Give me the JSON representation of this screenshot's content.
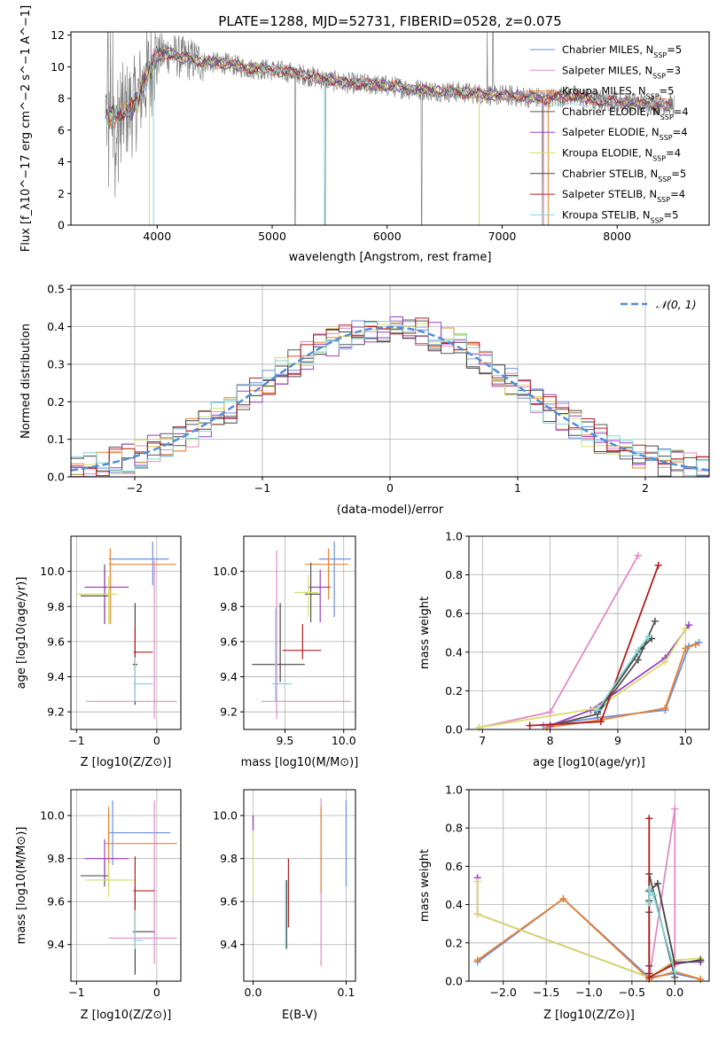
{
  "figure": {
    "title": "PLATE=1288, MJD=52731, FIBERID=0528, z=0.075"
  },
  "colors": {
    "Chabrier MILES": "#6b8fe0",
    "Salpeter MILES": "#e38bc4",
    "Kroupa MILES": "#e8822e",
    "Chabrier ELODIE": "#555555",
    "Salpeter ELODIE": "#9a3fbf",
    "Kroupa ELODIE": "#d7dc6a",
    "Chabrier STELIB": "#444444",
    "Salpeter STELIB": "#b51c1c",
    "Kroupa STELIB": "#7fd6d6",
    "data": "#808080",
    "gaussian": "#4f8fd8"
  },
  "chart_data": [
    {
      "type": "line",
      "id": "spectrum",
      "xlabel": "wavelength [Angstrom, rest frame]",
      "ylabel": "Flux [f_λ10^−17 erg cm^−2 s^−1 A^−1]",
      "xlim": [
        3250,
        8800
      ],
      "ylim": [
        0,
        12.2
      ],
      "xticks": [
        4000,
        5000,
        6000,
        7000,
        8000
      ],
      "yticks": [
        0,
        2,
        4,
        6,
        8,
        10,
        12
      ],
      "grid": false,
      "legend_position": "top-right",
      "legend": [
        "Chabrier MILES, N_SSP=5",
        "Salpeter MILES, N_SSP=3",
        "Kroupa MILES, N_SSP=5",
        "Chabrier ELODIE, N_SSP=4",
        "Salpeter ELODIE, N_SSP=4",
        "Kroupa ELODIE, N_SSP=4",
        "Chabrier STELIB, N_SSP=5",
        "Salpeter STELIB, N_SSP=4",
        "Kroupa STELIB, N_SSP=5"
      ],
      "continuum": {
        "x": [
          3550,
          3600,
          3700,
          3800,
          3900,
          4000,
          4100,
          4200,
          4400,
          4600,
          4800,
          5000,
          5200,
          5400,
          5600,
          5800,
          6000,
          6200,
          6400,
          6600,
          6800,
          7000,
          7200,
          7400,
          7600,
          7800,
          8000,
          8200,
          8400,
          8500
        ],
        "y": [
          7.2,
          6.8,
          7.1,
          7.5,
          9.2,
          10.7,
          10.9,
          10.6,
          10.3,
          10.2,
          9.9,
          9.8,
          9.6,
          9.3,
          9.0,
          8.9,
          8.8,
          8.6,
          8.5,
          8.4,
          8.3,
          8.2,
          8.1,
          8.0,
          8.2,
          7.9,
          7.8,
          7.7,
          7.6,
          7.6
        ]
      }
    },
    {
      "type": "bar",
      "id": "residual-histogram",
      "xlabel": "(data-model)/error",
      "ylabel": "Normed distribution",
      "xlim": [
        -2.5,
        2.5
      ],
      "ylim": [
        0,
        0.51
      ],
      "xticks": [
        -2,
        -1,
        0,
        1,
        2
      ],
      "yticks": [
        0.0,
        0.1,
        0.2,
        0.3,
        0.4,
        0.5
      ],
      "grid": true,
      "legend_position": "top-right",
      "legend": [
        "N(0,1)"
      ],
      "bin_width": 0.1
    },
    {
      "type": "scatter",
      "id": "age-vs-z",
      "xlabel": "Z [log10(Z/Z⊙)]",
      "ylabel": "age  [log10(age/yr)]",
      "xlim": [
        -1.07,
        0.3
      ],
      "ylim": [
        9.1,
        10.2
      ],
      "xticks": [
        -1,
        0
      ],
      "yticks": [
        9.2,
        9.4,
        9.6,
        9.8,
        10.0
      ],
      "grid": true,
      "points": [
        {
          "model": "Chabrier MILES",
          "x": -0.05,
          "y": 10.07,
          "xerr": [
            0.55,
            0.2
          ],
          "yerr": [
            0.15,
            0.1
          ]
        },
        {
          "model": "Kroupa MILES",
          "x": -0.58,
          "y": 10.04,
          "xerr": [
            0.02,
            0.82
          ],
          "yerr": [
            0.34,
            0.09
          ]
        },
        {
          "model": "Chabrier ELODIE",
          "x": -0.65,
          "y": 9.86,
          "xerr": [
            0.3,
            0.05
          ],
          "yerr": [
            0.16,
            0.18
          ]
        },
        {
          "model": "Salpeter ELODIE",
          "x": -0.65,
          "y": 9.91,
          "xerr": [
            0.25,
            0.3
          ],
          "yerr": [
            0.21,
            0.1
          ]
        },
        {
          "model": "Kroupa ELODIE",
          "x": -0.6,
          "y": 9.87,
          "xerr": [
            0.4,
            0.1
          ],
          "yerr": [
            0.17,
            0.1
          ]
        },
        {
          "model": "Chabrier STELIB",
          "x": -0.27,
          "y": 9.47,
          "xerr": [
            0.03,
            0.03
          ],
          "yerr": [
            0.23,
            0.35
          ]
        },
        {
          "model": "Salpeter STELIB",
          "x": -0.27,
          "y": 9.54,
          "xerr": [
            0.02,
            0.22
          ],
          "yerr": [
            0.1,
            0.15
          ]
        },
        {
          "model": "Kroupa STELIB",
          "x": -0.27,
          "y": 9.36,
          "xerr": [
            0.02,
            0.22
          ],
          "yerr": [
            0.1,
            0.15
          ]
        },
        {
          "model": "Salpeter MILES",
          "x": -0.03,
          "y": 9.26,
          "xerr": [
            0.85,
            0.28
          ],
          "yerr": [
            0.1,
            0.8
          ]
        }
      ]
    },
    {
      "type": "scatter",
      "id": "age-vs-mass",
      "xlabel": "mass [log10(M/M⊙)]",
      "ylabel": "",
      "xlim": [
        9.15,
        10.1
      ],
      "ylim": [
        9.1,
        10.2
      ],
      "xticks": [
        9.5,
        10.0
      ],
      "yticks": [
        9.2,
        9.4,
        9.6,
        9.8,
        10.0
      ],
      "grid": true,
      "points": [
        {
          "model": "Chabrier MILES",
          "x": 9.92,
          "y": 10.07,
          "xerr": [
            0.13,
            0.14
          ],
          "yerr": [
            0.33,
            0.1
          ]
        },
        {
          "model": "Kroupa MILES",
          "x": 9.87,
          "y": 10.04,
          "xerr": [
            0.2,
            0.17
          ],
          "yerr": [
            0.2,
            0.09
          ]
        },
        {
          "model": "Chabrier ELODIE",
          "x": 9.72,
          "y": 9.87,
          "xerr": [
            0.05,
            0.08
          ],
          "yerr": [
            0.16,
            0.18
          ]
        },
        {
          "model": "Salpeter ELODIE",
          "x": 9.8,
          "y": 9.91,
          "xerr": [
            0.1,
            0.09
          ],
          "yerr": [
            0.2,
            0.1
          ]
        },
        {
          "model": "Kroupa ELODIE",
          "x": 9.7,
          "y": 9.88,
          "xerr": [
            0.12,
            0.08
          ],
          "yerr": [
            0.14,
            0.1
          ]
        },
        {
          "model": "Chabrier STELIB",
          "x": 9.46,
          "y": 9.47,
          "xerr": [
            0.24,
            0.21
          ],
          "yerr": [
            0.1,
            0.35
          ]
        },
        {
          "model": "Salpeter STELIB",
          "x": 9.65,
          "y": 9.55,
          "xerr": [
            0.17,
            0.16
          ],
          "yerr": [
            0.05,
            0.15
          ]
        },
        {
          "model": "Kroupa STELIB",
          "x": 9.42,
          "y": 9.36,
          "xerr": [
            0.03,
            0.14
          ],
          "yerr": [
            0.1,
            0.43
          ]
        },
        {
          "model": "Salpeter MILES",
          "x": 9.43,
          "y": 9.26,
          "xerr": [
            0.13,
            0.63
          ],
          "yerr": [
            0.1,
            0.86
          ]
        }
      ]
    },
    {
      "type": "line",
      "id": "mass-weight-vs-age",
      "xlabel": "age  [log10(age/yr)]",
      "ylabel": "mass weight",
      "xlim": [
        6.8,
        10.35
      ],
      "ylim": [
        0,
        1.0
      ],
      "xticks": [
        7,
        8,
        9,
        10
      ],
      "yticks": [
        0.0,
        0.2,
        0.4,
        0.6,
        0.8,
        1.0
      ],
      "grid": true,
      "series": [
        {
          "name": "Chabrier MILES",
          "x": [
            7.9,
            8.7,
            9.7,
            10.05,
            10.2
          ],
          "y": [
            0.02,
            0.06,
            0.1,
            0.43,
            0.45
          ]
        },
        {
          "name": "Salpeter MILES",
          "x": [
            6.95,
            8.0,
            9.3
          ],
          "y": [
            0.01,
            0.09,
            0.9
          ]
        },
        {
          "name": "Kroupa MILES",
          "x": [
            7.95,
            8.75,
            9.7,
            10.0,
            10.15
          ],
          "y": [
            0.01,
            0.05,
            0.11,
            0.42,
            0.44
          ]
        },
        {
          "name": "Chabrier ELODIE",
          "x": [
            8.0,
            8.7,
            9.3,
            9.55
          ],
          "y": [
            0.02,
            0.08,
            0.36,
            0.56
          ]
        },
        {
          "name": "Salpeter ELODIE",
          "x": [
            8.0,
            8.6,
            9.7,
            10.05
          ],
          "y": [
            0.02,
            0.1,
            0.37,
            0.54
          ]
        },
        {
          "name": "Kroupa ELODIE",
          "x": [
            6.95,
            8.7,
            9.7,
            10.0
          ],
          "y": [
            0.01,
            0.11,
            0.35,
            0.52
          ]
        },
        {
          "name": "Chabrier STELIB",
          "x": [
            8.7,
            9.35,
            9.5
          ],
          "y": [
            0.09,
            0.42,
            0.47
          ]
        },
        {
          "name": "Salpeter STELIB",
          "x": [
            7.7,
            8.75,
            9.6
          ],
          "y": [
            0.02,
            0.04,
            0.85
          ]
        },
        {
          "name": "Kroupa STELIB",
          "x": [
            8.7,
            9.3,
            9.45
          ],
          "y": [
            0.1,
            0.41,
            0.48
          ]
        }
      ]
    },
    {
      "type": "scatter",
      "id": "mass-vs-z",
      "xlabel": "Z [log10(Z/Z⊙)]",
      "ylabel": "mass [log10(M/M⊙)]",
      "xlim": [
        -1.07,
        0.3
      ],
      "ylim": [
        9.23,
        10.12
      ],
      "xticks": [
        -1,
        0
      ],
      "yticks": [
        9.4,
        9.6,
        9.8,
        10.0
      ],
      "grid": true,
      "points": [
        {
          "model": "Chabrier MILES",
          "x": -0.55,
          "y": 9.92,
          "xerr": [
            0.05,
            0.72
          ],
          "yerr": [
            0.15,
            0.15
          ]
        },
        {
          "model": "Kroupa MILES",
          "x": -0.6,
          "y": 9.87,
          "xerr": [
            0.05,
            0.85
          ],
          "yerr": [
            0.2,
            0.17
          ]
        },
        {
          "model": "Chabrier ELODIE",
          "x": -0.65,
          "y": 9.72,
          "xerr": [
            0.3,
            0.05
          ],
          "yerr": [
            0.05,
            0.08
          ]
        },
        {
          "model": "Salpeter ELODIE",
          "x": -0.65,
          "y": 9.8,
          "xerr": [
            0.25,
            0.3
          ],
          "yerr": [
            0.1,
            0.09
          ]
        },
        {
          "model": "Kroupa ELODIE",
          "x": -0.6,
          "y": 9.7,
          "xerr": [
            0.3,
            0.32
          ],
          "yerr": [
            0.08,
            0.08
          ]
        },
        {
          "model": "Chabrier STELIB",
          "x": -0.27,
          "y": 9.46,
          "xerr": [
            0.03,
            0.25
          ],
          "yerr": [
            0.2,
            0.21
          ]
        },
        {
          "model": "Salpeter STELIB",
          "x": -0.27,
          "y": 9.65,
          "xerr": [
            0.02,
            0.25
          ],
          "yerr": [
            0.17,
            0.16
          ]
        },
        {
          "model": "Kroupa STELIB",
          "x": -0.27,
          "y": 9.42,
          "xerr": [
            0.02,
            0.1
          ],
          "yerr": [
            0.04,
            0.14
          ]
        },
        {
          "model": "Salpeter MILES",
          "x": -0.03,
          "y": 9.43,
          "xerr": [
            0.57,
            0.28
          ],
          "yerr": [
            0.12,
            0.64
          ]
        }
      ]
    },
    {
      "type": "scatter",
      "id": "mass-vs-ebv",
      "xlabel": "E(B-V)",
      "ylabel": "",
      "xlim": [
        -0.01,
        0.11
      ],
      "ylim": [
        9.23,
        10.12
      ],
      "xticks": [
        0.0,
        0.1
      ],
      "yticks": [
        9.4,
        9.6,
        9.8,
        10.0
      ],
      "grid": true,
      "points": [
        {
          "model": "Chabrier MILES",
          "x": 0.1,
          "y": 9.92,
          "xerr": [
            0,
            0
          ],
          "yerr": [
            0.25,
            0.15
          ]
        },
        {
          "model": "Salpeter MILES",
          "x": 0.073,
          "y": 9.7,
          "xerr": [
            0,
            0
          ],
          "yerr": [
            0.4,
            0.38
          ]
        },
        {
          "model": "Kroupa MILES",
          "x": 0.073,
          "y": 9.87,
          "xerr": [
            0,
            0
          ],
          "yerr": [
            0.23,
            0.17
          ]
        },
        {
          "model": "Chabrier ELODIE",
          "x": 0.0,
          "y": 9.97,
          "xerr": [
            0,
            0
          ],
          "yerr": [
            0.03,
            0.03
          ]
        },
        {
          "model": "Salpeter ELODIE",
          "x": 0.0,
          "y": 9.96,
          "xerr": [
            0,
            0
          ],
          "yerr": [
            0.03,
            0.04
          ]
        },
        {
          "model": "Kroupa ELODIE",
          "x": 0.0,
          "y": 9.77,
          "xerr": [
            0,
            0
          ],
          "yerr": [
            0.15,
            0.15
          ]
        },
        {
          "model": "Chabrier STELIB",
          "x": 0.036,
          "y": 9.46,
          "xerr": [
            0,
            0
          ],
          "yerr": [
            0.08,
            0.24
          ]
        },
        {
          "model": "Salpeter STELIB",
          "x": 0.038,
          "y": 9.65,
          "xerr": [
            0,
            0
          ],
          "yerr": [
            0.17,
            0.15
          ]
        },
        {
          "model": "Kroupa STELIB",
          "x": 0.035,
          "y": 9.55,
          "xerr": [
            0,
            0
          ],
          "yerr": [
            0.17,
            0.15
          ]
        }
      ]
    },
    {
      "type": "line",
      "id": "mass-weight-vs-z",
      "xlabel": "Z [log10(Z/Z⊙)]",
      "ylabel": "mass weight",
      "xlim": [
        -2.4,
        0.4
      ],
      "ylim": [
        0,
        1.0
      ],
      "xticks": [
        -2.0,
        -1.5,
        -1.0,
        -0.5,
        0.0
      ],
      "yticks": [
        0.0,
        0.2,
        0.4,
        0.6,
        0.8,
        1.0
      ],
      "grid": true,
      "series": [
        {
          "name": "Chabrier MILES",
          "x": [
            -2.3,
            -1.3,
            -0.3,
            0.0,
            0.3
          ],
          "y": [
            0.1,
            0.43,
            0.02,
            0.04,
            0.01
          ]
        },
        {
          "name": "Salpeter MILES",
          "x": [
            -0.3,
            0.0,
            0.0
          ],
          "y": [
            0.01,
            0.9,
            0.09
          ]
        },
        {
          "name": "Kroupa MILES",
          "x": [
            -2.3,
            -1.3,
            -0.3,
            0.0,
            0.3
          ],
          "y": [
            0.11,
            0.43,
            0.01,
            0.05,
            0.01
          ]
        },
        {
          "name": "Chabrier ELODIE",
          "x": [
            -0.3,
            -0.3,
            -0.3,
            0.0
          ],
          "y": [
            0.08,
            0.36,
            0.56,
            0.02
          ]
        },
        {
          "name": "Salpeter ELODIE",
          "x": [
            -2.3,
            -2.3,
            -0.3,
            0.0,
            0.3
          ],
          "y": [
            0.54,
            0.35,
            0.02,
            0.1,
            0.1
          ]
        },
        {
          "name": "Kroupa ELODIE",
          "x": [
            -2.3,
            -2.3,
            -0.3,
            0.0,
            0.3
          ],
          "y": [
            0.52,
            0.35,
            0.02,
            0.11,
            0.12
          ]
        },
        {
          "name": "Chabrier STELIB",
          "x": [
            -0.3,
            -0.3,
            -0.2,
            0.0,
            0.3
          ],
          "y": [
            0.42,
            0.47,
            0.51,
            0.09,
            0.11
          ]
        },
        {
          "name": "Salpeter STELIB",
          "x": [
            -0.3,
            -0.3,
            -0.3,
            0.0
          ],
          "y": [
            0.85,
            0.04,
            0.02,
            0.09
          ]
        },
        {
          "name": "Kroupa STELIB",
          "x": [
            -0.3,
            -0.3,
            -0.25,
            0.0
          ],
          "y": [
            0.41,
            0.48,
            0.45,
            0.05
          ]
        }
      ]
    }
  ]
}
